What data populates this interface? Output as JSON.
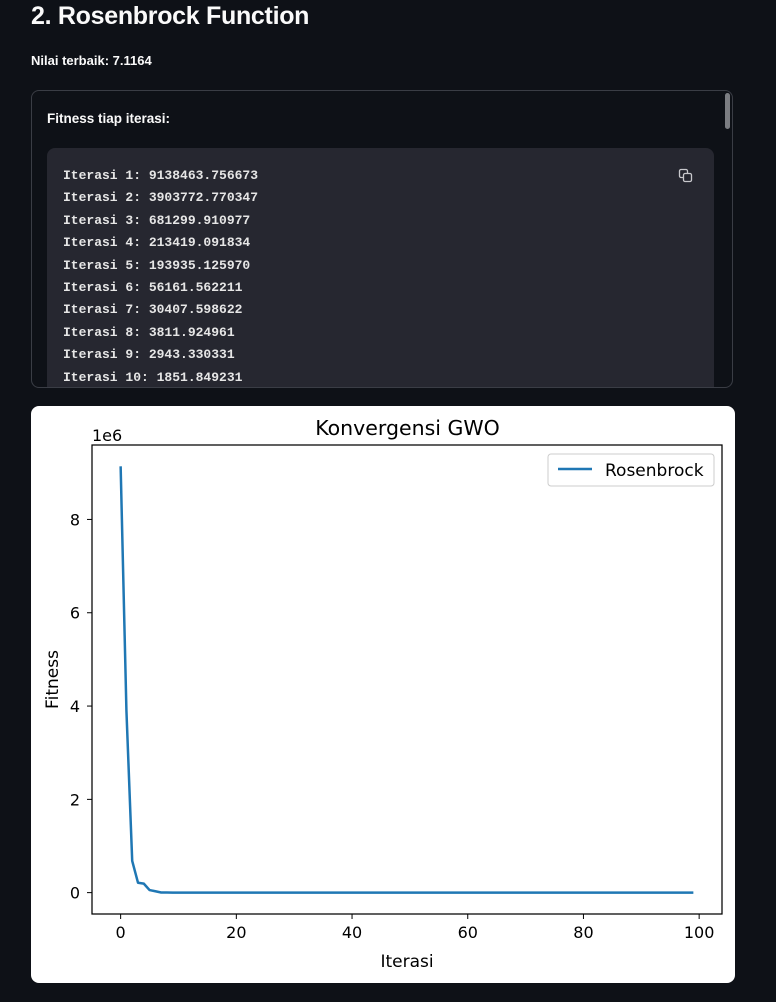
{
  "section": {
    "title": "2. Rosenbrock Function",
    "best_value": "Nilai terbaik: 7.1164"
  },
  "expander": {
    "label": "Fitness tiap iterasi:",
    "lines": [
      "Iterasi 1: 9138463.756673",
      "Iterasi 2: 3903772.770347",
      "Iterasi 3: 681299.910977",
      "Iterasi 4: 213419.091834",
      "Iterasi 5: 193935.125970",
      "Iterasi 6: 56161.562211",
      "Iterasi 7: 30407.598622",
      "Iterasi 8: 3811.924961",
      "Iterasi 9: 2943.330331",
      "Iterasi 10: 1851.849231"
    ],
    "copy_icon": "copy-icon"
  },
  "chart_data": {
    "type": "line",
    "title": "Konvergensi GWO",
    "xlabel": "Iterasi",
    "ylabel": "Fitness",
    "offset_text": "1e6",
    "xlim": [
      -4.95,
      103.95
    ],
    "ylim": [
      -456923.19,
      9595386.94
    ],
    "xticks": [
      0,
      20,
      40,
      60,
      80,
      100
    ],
    "yticks": [
      0,
      2,
      4,
      6,
      8
    ],
    "ytick_scale": 1000000,
    "legend": "upper right",
    "grid": false,
    "series": [
      {
        "name": "Rosenbrock",
        "color": "#1f77b4",
        "x": [
          0,
          1,
          2,
          3,
          4,
          5,
          6,
          7,
          8,
          9,
          99
        ],
        "y": [
          9138463.756673,
          3903772.770347,
          681299.910977,
          213419.091834,
          193935.12597,
          56161.562211,
          30407.598622,
          3811.924961,
          2943.330331,
          1851.849231,
          7.1164
        ]
      }
    ]
  }
}
